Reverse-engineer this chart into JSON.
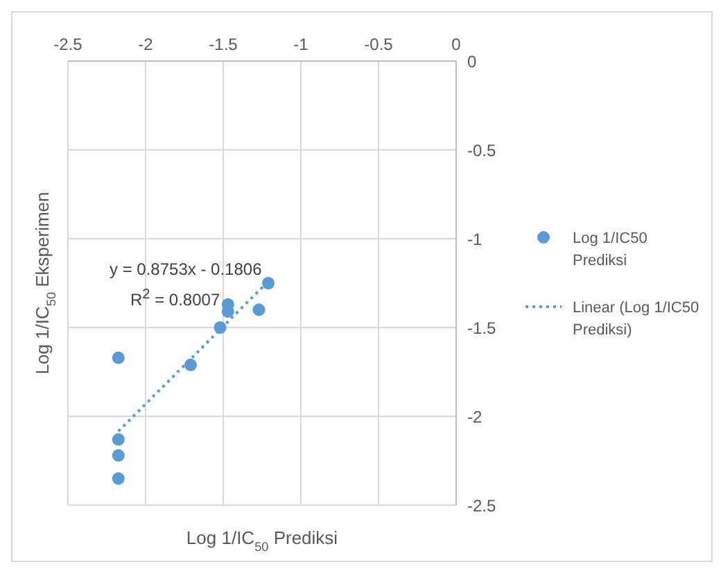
{
  "chart_data": {
    "type": "scatter",
    "xlabel": "Log 1/IC$_{50}$ Prediksi",
    "ylabel": "Log 1/IC$_{50}$ Eksperimen",
    "x": [
      -2.175,
      -2.175,
      -2.175,
      -2.175,
      -1.71,
      -1.52,
      -1.47,
      -1.47,
      -1.27,
      -1.21
    ],
    "series": [
      {
        "name": "Log 1/IC50 Prediksi",
        "color": "#5b9bd5",
        "values": [
          -1.67,
          -2.13,
          -2.22,
          -2.35,
          -1.71,
          -1.5,
          -1.37,
          -1.41,
          -1.4,
          -1.25
        ],
        "marker": "circle"
      },
      {
        "name": "Linear (Log 1/IC50 Prediksi)",
        "type": "line",
        "color": "#5b9bd5",
        "x": [
          -2.175,
          -1.21
        ],
        "values": [
          -2.084,
          -1.24
        ],
        "line_style": "dotted",
        "marker": "none"
      }
    ],
    "annotations": [
      "y = 0.8753x - 0.1806",
      "R$^{2}$ = 0.8007"
    ],
    "xlim": [
      -2.5,
      0
    ],
    "xticks": [
      -2.5,
      -2,
      -1.5,
      -1,
      -0.5,
      0
    ],
    "ylim": [
      -2.5,
      0
    ],
    "yticks": [
      -2.5,
      -2,
      -1.5,
      -1,
      -0.5,
      0
    ],
    "grid": true,
    "legend": "right"
  }
}
